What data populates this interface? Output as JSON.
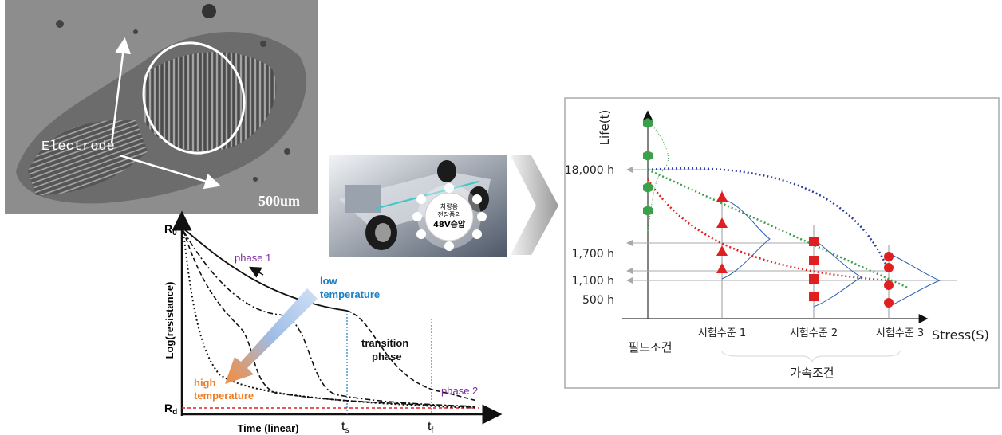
{
  "sem_image": {
    "label": "Electrode",
    "scale": "500um"
  },
  "resistance_plot": {
    "y_axis_label": "Log(resistance)",
    "x_axis_label": "Time (linear)",
    "r_top": {
      "main": "R",
      "sub": "0"
    },
    "r_bottom": {
      "main": "R",
      "sub": "d"
    },
    "t_s": {
      "main": "t",
      "sub": "s"
    },
    "t_f": {
      "main": "t",
      "sub": "f"
    },
    "phase_1": "phase 1",
    "phase_2": "phase 2",
    "low_temperature": [
      "low",
      "temperature"
    ],
    "high_temperature": [
      "high",
      "temperature"
    ],
    "transition_phase": [
      "transition",
      "phase"
    ]
  },
  "car_image": {
    "caption": [
      "차량용",
      "전장품의",
      "48V승압"
    ]
  },
  "life_stress_chart": {
    "y_axis_label": "Life(t)",
    "x_axis_label": "Stress(S)",
    "life_levels": [
      "18,000 h",
      "1,700 h",
      "1,100 h",
      "500 h"
    ],
    "field_condition": "필드조건",
    "test_levels": [
      "시험수준 1",
      "시험수준 2",
      "시험수준 3"
    ],
    "accelerated_condition": "가속조건"
  }
}
